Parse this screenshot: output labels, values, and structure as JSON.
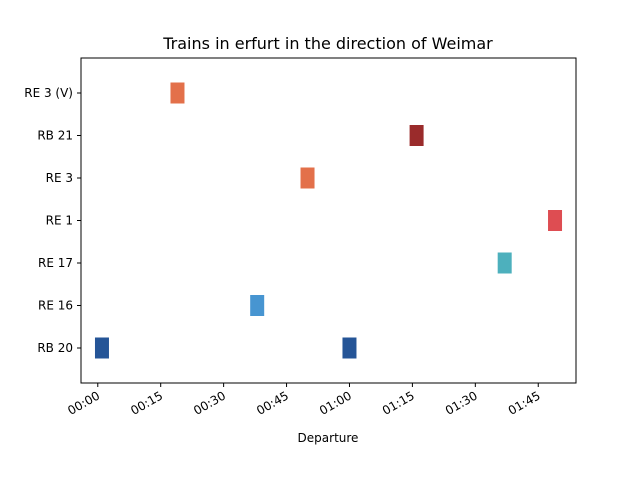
{
  "chart_data": {
    "type": "timeline",
    "title": "Trains in erfurt in the direction of Weimar",
    "xlabel": "Departure",
    "ylabel": "",
    "categories": [
      "RB 20",
      "RE 16",
      "RE 17",
      "RE 1",
      "RE 3",
      "RB 21",
      "RE 3 (V)"
    ],
    "x_ticks": [
      "00:00",
      "00:15",
      "00:30",
      "00:45",
      "01:00",
      "01:15",
      "01:30",
      "01:45"
    ],
    "xlim_minutes": [
      -4,
      114
    ],
    "grid": false,
    "legend": "none",
    "departures": [
      {
        "line": "RB 20",
        "minute": 1,
        "color": "#255597"
      },
      {
        "line": "RE 3 (V)",
        "minute": 19,
        "color": "#e3704a"
      },
      {
        "line": "RE 16",
        "minute": 38,
        "color": "#4795d1"
      },
      {
        "line": "RE 3",
        "minute": 50,
        "color": "#e3704a"
      },
      {
        "line": "RB 20",
        "minute": 60,
        "color": "#255597"
      },
      {
        "line": "RB 21",
        "minute": 76,
        "color": "#9a2b2b"
      },
      {
        "line": "RE 17",
        "minute": 97,
        "color": "#4db0bd"
      },
      {
        "line": "RE 1",
        "minute": 109,
        "color": "#de4d52"
      }
    ]
  }
}
